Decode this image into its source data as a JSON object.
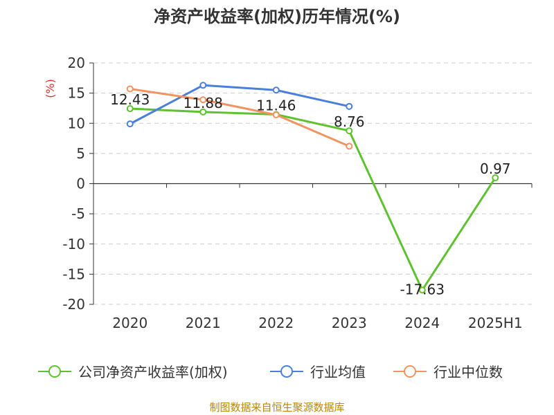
{
  "chart_data": {
    "type": "line",
    "title": "净资产收益率(加权)历年情况(%)",
    "ylabel": "(%)",
    "xlabel": "",
    "categories": [
      "2020",
      "2021",
      "2022",
      "2023",
      "2024",
      "2025H1"
    ],
    "yticks": [
      "20",
      "15",
      "10",
      "5",
      "0",
      "-5",
      "-10",
      "-15",
      "-20"
    ],
    "ylim": [
      -20,
      20
    ],
    "grid": true,
    "legend_position": "bottom",
    "series": [
      {
        "name": "公司净资产收益率(加权)",
        "color": "#5ec22f",
        "values": [
          12.43,
          11.88,
          11.46,
          8.76,
          -17.63,
          0.97
        ],
        "labels": [
          "12.43",
          "11.88",
          "11.46",
          "8.76",
          "-17.63",
          "0.97"
        ]
      },
      {
        "name": "行业均值",
        "color": "#4a7fdc",
        "values": [
          9.9,
          16.3,
          15.5,
          12.8,
          null,
          null
        ]
      },
      {
        "name": "行业中位数",
        "color": "#f39360",
        "values": [
          15.7,
          13.9,
          11.4,
          6.2,
          null,
          null
        ]
      }
    ]
  },
  "footer": {
    "source": "制图数据来自恒生聚源数据库"
  }
}
